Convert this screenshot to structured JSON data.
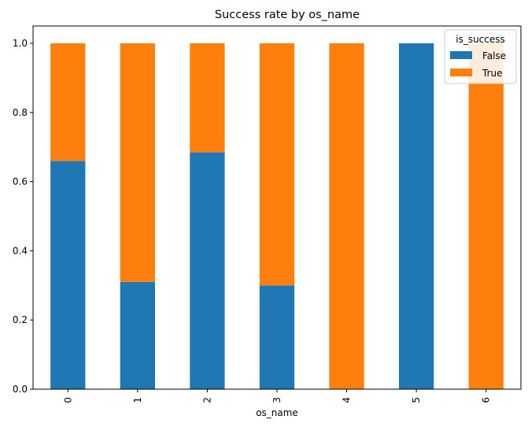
{
  "chart_data": {
    "type": "bar",
    "stacked": true,
    "title": "Success rate by os_name",
    "xlabel": "os_name",
    "ylabel": "",
    "categories": [
      "0",
      "1",
      "2",
      "3",
      "4",
      "5",
      "6"
    ],
    "ylim": [
      0,
      1.05
    ],
    "yticks": [
      "0.0",
      "0.2",
      "0.4",
      "0.6",
      "0.8",
      "1.0"
    ],
    "grid": false,
    "legend": {
      "title": "is_success",
      "placement": "top-right"
    },
    "series": [
      {
        "name": "False",
        "color": "#1f77b4",
        "values": [
          0.66,
          0.31,
          0.685,
          0.3,
          0.0,
          1.0,
          0.0
        ]
      },
      {
        "name": "True",
        "color": "#ff7f0e",
        "values": [
          0.34,
          0.69,
          0.315,
          0.7,
          1.0,
          0.0,
          1.0
        ]
      }
    ]
  }
}
